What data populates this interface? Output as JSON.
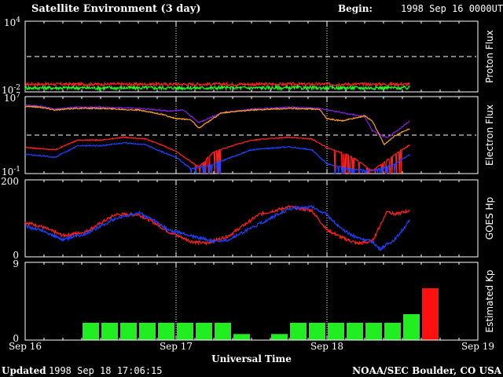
{
  "header": {
    "title": "Satellite Environment (3 day)",
    "begin_label": "Begin:",
    "begin_value": "1998 Sep 16 0000UT"
  },
  "footer": {
    "updated_label": "Updated",
    "updated_value": "1998 Sep 18 17:06:15",
    "credit": "NOAA/SEC Boulder, CO USA"
  },
  "colors": {
    "red": "#ff2020",
    "green": "#20ff20",
    "blue": "#2040ff",
    "purple": "#8020e0",
    "orange": "#ffa020",
    "bar_green": "#20ee20",
    "bar_red": "#ff1010",
    "frame": "#ffffff"
  },
  "chart_data": [
    {
      "id": "proton",
      "type": "line",
      "ylabel": "Proton Flux",
      "yscale": "log",
      "ytick_labels": [
        {
          "base": "10",
          "exp": "4"
        },
        {
          "base": "10",
          "exp": "-2"
        }
      ],
      "ylim": [
        0.01,
        10000
      ],
      "threshold": 10,
      "series": [
        {
          "color": "red",
          "level": 0.045,
          "noise": 0.25
        },
        {
          "color": "green",
          "level": 0.022,
          "noise": 0.3
        }
      ]
    },
    {
      "id": "electron",
      "type": "line",
      "ylabel": "Electron Flux",
      "yscale": "log",
      "ytick_labels": [
        {
          "base": "10",
          "exp": "7"
        },
        {
          "base": "10",
          "exp": "-1"
        }
      ],
      "ylim": [
        0.1,
        10000000
      ],
      "threshold": 1000,
      "series": [
        {
          "color": "purple",
          "points": [
            [
              0,
              1300000.0
            ],
            [
              0.1,
              1000000.0
            ],
            [
              0.2,
              500000.0
            ],
            [
              0.33,
              800000.0
            ],
            [
              0.5,
              800000.0
            ],
            [
              0.75,
              600000.0
            ],
            [
              0.9,
              400000.0
            ],
            [
              0.95,
              300000.0
            ],
            [
              1.05,
              400000.0
            ],
            [
              1.15,
              20000.0
            ],
            [
              1.3,
              200000.0
            ],
            [
              1.5,
              500000.0
            ],
            [
              1.75,
              800000.0
            ],
            [
              1.95,
              600000.0
            ],
            [
              2.05,
              300000.0
            ],
            [
              2.25,
              80000.0
            ],
            [
              2.3,
              3000.0
            ],
            [
              2.4,
              500
            ],
            [
              2.55,
              30000.0
            ]
          ]
        },
        {
          "color": "orange",
          "points": [
            [
              0,
              1000000.0
            ],
            [
              0.1,
              800000.0
            ],
            [
              0.2,
              400000.0
            ],
            [
              0.33,
              600000.0
            ],
            [
              0.5,
              600000.0
            ],
            [
              0.75,
              400000.0
            ],
            [
              0.9,
              150000.0
            ],
            [
              1.0,
              50000.0
            ],
            [
              1.1,
              40000.0
            ],
            [
              1.15,
              5000.0
            ],
            [
              1.3,
              200000.0
            ],
            [
              1.5,
              400000.0
            ],
            [
              1.75,
              600000.0
            ],
            [
              1.95,
              500000.0
            ],
            [
              2.0,
              50000.0
            ],
            [
              2.1,
              30000.0
            ],
            [
              2.25,
              100000.0
            ],
            [
              2.3,
              30000.0
            ],
            [
              2.38,
              100
            ],
            [
              2.45,
              900
            ],
            [
              2.55,
              5000.0
            ]
          ]
        },
        {
          "color": "red",
          "points": [
            [
              0,
              50
            ],
            [
              0.2,
              30
            ],
            [
              0.35,
              300
            ],
            [
              0.5,
              300
            ],
            [
              0.65,
              600
            ],
            [
              0.8,
              400
            ],
            [
              0.9,
              100
            ],
            [
              1.0,
              20
            ],
            [
              1.15,
              0.5
            ],
            [
              1.25,
              20
            ],
            [
              1.5,
              300
            ],
            [
              1.75,
              600
            ],
            [
              1.9,
              400
            ],
            [
              2.0,
              50
            ],
            [
              2.15,
              8
            ],
            [
              2.3,
              0.2
            ],
            [
              2.45,
              10
            ],
            [
              2.55,
              100
            ]
          ]
        },
        {
          "color": "blue",
          "points": [
            [
              0,
              10
            ],
            [
              0.2,
              5
            ],
            [
              0.35,
              80
            ],
            [
              0.5,
              80
            ],
            [
              0.65,
              150
            ],
            [
              0.8,
              100
            ],
            [
              0.9,
              20
            ],
            [
              1.0,
              5
            ],
            [
              1.1,
              0.3
            ],
            [
              1.25,
              1
            ],
            [
              1.5,
              30
            ],
            [
              1.75,
              60
            ],
            [
              1.9,
              30
            ],
            [
              2.0,
              1
            ],
            [
              2.15,
              0.3
            ],
            [
              2.3,
              0.2
            ],
            [
              2.45,
              1
            ],
            [
              2.55,
              10
            ]
          ]
        }
      ]
    },
    {
      "id": "goes",
      "type": "line",
      "ylabel": "GOES Hp",
      "ylim": [
        0,
        200
      ],
      "ytick_labels": [
        "200",
        "0"
      ],
      "series": [
        {
          "color": "red",
          "points": [
            [
              0,
              90
            ],
            [
              0.1,
              80
            ],
            [
              0.25,
              55
            ],
            [
              0.4,
              65
            ],
            [
              0.6,
              110
            ],
            [
              0.75,
              110
            ],
            [
              0.85,
              90
            ],
            [
              0.95,
              65
            ],
            [
              1.1,
              40
            ],
            [
              1.2,
              35
            ],
            [
              1.35,
              55
            ],
            [
              1.55,
              110
            ],
            [
              1.75,
              130
            ],
            [
              1.9,
              120
            ],
            [
              2.0,
              70
            ],
            [
              2.1,
              50
            ],
            [
              2.2,
              35
            ],
            [
              2.3,
              40
            ],
            [
              2.4,
              120
            ],
            [
              2.45,
              110
            ],
            [
              2.55,
              120
            ]
          ]
        },
        {
          "color": "blue",
          "points": [
            [
              0,
              80
            ],
            [
              0.1,
              70
            ],
            [
              0.25,
              45
            ],
            [
              0.4,
              60
            ],
            [
              0.6,
              100
            ],
            [
              0.75,
              115
            ],
            [
              0.85,
              95
            ],
            [
              0.95,
              70
            ],
            [
              1.1,
              55
            ],
            [
              1.25,
              40
            ],
            [
              1.35,
              45
            ],
            [
              1.55,
              85
            ],
            [
              1.75,
              125
            ],
            [
              1.9,
              130
            ],
            [
              2.0,
              110
            ],
            [
              2.1,
              70
            ],
            [
              2.2,
              50
            ],
            [
              2.3,
              40
            ],
            [
              2.35,
              20
            ],
            [
              2.45,
              45
            ],
            [
              2.55,
              95
            ]
          ]
        }
      ]
    },
    {
      "id": "kp",
      "type": "bar",
      "ylabel": "Estimated Kp",
      "ylim": [
        0,
        9
      ],
      "ytick_labels": [
        "9",
        "0"
      ],
      "bars": [
        {
          "i": 3,
          "value": 2,
          "color": "bar_green"
        },
        {
          "i": 4,
          "value": 2,
          "color": "bar_green"
        },
        {
          "i": 5,
          "value": 2,
          "color": "bar_green"
        },
        {
          "i": 6,
          "value": 2,
          "color": "bar_green"
        },
        {
          "i": 7,
          "value": 2,
          "color": "bar_green"
        },
        {
          "i": 8,
          "value": 2,
          "color": "bar_green"
        },
        {
          "i": 9,
          "value": 2,
          "color": "bar_green"
        },
        {
          "i": 10,
          "value": 2,
          "color": "bar_green"
        },
        {
          "i": 11,
          "value": 0.7,
          "color": "bar_green"
        },
        {
          "i": 13,
          "value": 0.7,
          "color": "bar_green"
        },
        {
          "i": 14,
          "value": 2,
          "color": "bar_green"
        },
        {
          "i": 15,
          "value": 2,
          "color": "bar_green"
        },
        {
          "i": 16,
          "value": 2,
          "color": "bar_green"
        },
        {
          "i": 17,
          "value": 2,
          "color": "bar_green"
        },
        {
          "i": 18,
          "value": 2,
          "color": "bar_green"
        },
        {
          "i": 19,
          "value": 2,
          "color": "bar_green"
        },
        {
          "i": 20,
          "value": 3,
          "color": "bar_green"
        },
        {
          "i": 21,
          "value": 6,
          "color": "bar_red"
        }
      ]
    }
  ],
  "xaxis": {
    "label": "Universal Time",
    "ticks": [
      "Sep 16",
      "Sep 17",
      "Sep 18",
      "Sep 19"
    ],
    "xlim": [
      0,
      3
    ]
  }
}
